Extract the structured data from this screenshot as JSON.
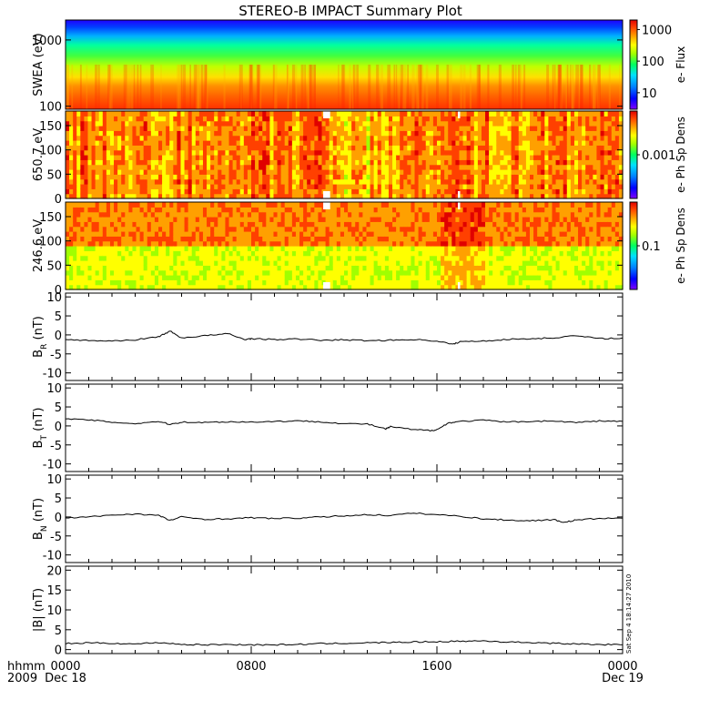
{
  "title": "STEREO-B IMPACT Summary Plot",
  "footer": {
    "time_label": "hhmm",
    "year_label": "2009",
    "ticks": [
      {
        "time": "0000",
        "date": "Dec 18",
        "hour": 0
      },
      {
        "time": "0800",
        "date": "",
        "hour": 8
      },
      {
        "time": "1600",
        "date": "",
        "hour": 16
      },
      {
        "time": "0000",
        "date": "Dec 19",
        "hour": 24
      }
    ],
    "stamp": "Sat Sep  4 18:14:27 2010"
  },
  "colors": {
    "spectrogram": [
      "#7f00ff",
      "#0000ff",
      "#0080ff",
      "#00e0ff",
      "#00ff60",
      "#a0ff00",
      "#ffff00",
      "#ffa000",
      "#ff4000",
      "#e00000"
    ],
    "line": "#000000"
  },
  "chart_data": [
    {
      "type": "heatmap",
      "ylabel": "SWEA (eV)",
      "yscale": "log",
      "ylim": [
        90,
        2000
      ],
      "yticks": [
        "100",
        "1000"
      ],
      "colorbar": {
        "label": "e- Flux",
        "scale": "log",
        "ticks": [
          "10",
          "100",
          "1000"
        ],
        "range": [
          3,
          2000
        ]
      },
      "x": {
        "unit": "hour",
        "range": [
          0,
          24
        ]
      },
      "description_levels": [
        {
          "energy_ev": 1800,
          "flux": 5
        },
        {
          "energy_ev": 1400,
          "flux": 15
        },
        {
          "energy_ev": 1000,
          "flux": 40
        },
        {
          "energy_ev": 700,
          "flux": 100
        },
        {
          "energy_ev": 450,
          "flux": 250
        },
        {
          "energy_ev": 300,
          "flux": 500
        },
        {
          "energy_ev": 200,
          "flux": 1000
        },
        {
          "energy_ev": 120,
          "flux": 1500
        }
      ]
    },
    {
      "type": "heatmap",
      "ylabel": "650.7 eV",
      "ylim": [
        0,
        180
      ],
      "yticks": [
        "0",
        "50",
        "100",
        "150"
      ],
      "colorbar": {
        "label": "e- Ph Sp Dens",
        "scale": "log",
        "ticks": [
          "0.001"
        ],
        "range": [
          0.0001,
          0.01
        ]
      },
      "x": {
        "unit": "hour",
        "range": [
          0,
          24
        ]
      },
      "gaps_hour": [
        [
          11.1,
          11.4
        ],
        [
          16.9,
          17.0
        ]
      ]
    },
    {
      "type": "heatmap",
      "ylabel": "246.6 eV",
      "ylim": [
        0,
        180
      ],
      "yticks": [
        "0",
        "50",
        "100",
        "150"
      ],
      "colorbar": {
        "label": "e- Ph Sp Dens",
        "scale": "log",
        "ticks": [
          "0.1"
        ],
        "range": [
          0.01,
          1
        ]
      },
      "x": {
        "unit": "hour",
        "range": [
          0,
          24
        ]
      },
      "gaps_hour": [
        [
          11.1,
          11.4
        ],
        [
          16.9,
          17.0
        ]
      ]
    },
    {
      "type": "line",
      "ylabel": "B",
      "ylabel_sub": "R",
      "ylabel_unit": " (nT)",
      "ylim": [
        -12,
        11
      ],
      "yticks": [
        "-10",
        "-5",
        "0",
        "5",
        "10"
      ],
      "x": [
        0,
        1,
        2,
        3,
        4,
        4.5,
        5,
        6,
        7,
        7.7,
        8,
        9,
        10,
        11,
        12,
        13,
        14,
        15,
        16,
        16.7,
        17,
        18,
        19,
        20,
        21,
        22,
        23,
        24
      ],
      "values": [
        -1.2,
        -1.5,
        -1.6,
        -1.3,
        -0.5,
        1.0,
        -0.8,
        -0.2,
        0.3,
        -1.2,
        -1.0,
        -1.2,
        -1.1,
        -1.4,
        -1.3,
        -1.5,
        -1.4,
        -1.2,
        -1.6,
        -2.5,
        -1.8,
        -1.6,
        -1.2,
        -1.0,
        -0.8,
        -0.2,
        -1.0,
        -0.8
      ]
    },
    {
      "type": "line",
      "ylabel": "B",
      "ylabel_sub": "T",
      "ylabel_unit": " (nT)",
      "ylim": [
        -12,
        11
      ],
      "yticks": [
        "-10",
        "-5",
        "0",
        "5",
        "10"
      ],
      "x": [
        0,
        1,
        2,
        3,
        4,
        4.5,
        5,
        6,
        7,
        8,
        9,
        10,
        11,
        12,
        13,
        13.8,
        14,
        15,
        15.7,
        16,
        16.5,
        17,
        18,
        19,
        20,
        21,
        22,
        23,
        24
      ],
      "values": [
        1.8,
        1.6,
        1.0,
        0.6,
        1.2,
        0.4,
        1.0,
        0.9,
        1.1,
        1.0,
        1.2,
        1.3,
        1.1,
        0.6,
        0.5,
        -0.8,
        -0.2,
        -1.0,
        -1.2,
        -1.0,
        0.8,
        1.2,
        1.5,
        1.0,
        1.2,
        1.3,
        0.9,
        1.3,
        1.2
      ]
    },
    {
      "type": "line",
      "ylabel": "B",
      "ylabel_sub": "N",
      "ylabel_unit": " (nT)",
      "ylim": [
        -12,
        11
      ],
      "yticks": [
        "-10",
        "-5",
        "0",
        "5",
        "10"
      ],
      "x": [
        0,
        1,
        2,
        3,
        4,
        4.5,
        5,
        6,
        7,
        8,
        9,
        10,
        11,
        12,
        13,
        14,
        15,
        16,
        17,
        18,
        19,
        20,
        21,
        21.5,
        22,
        23,
        24
      ],
      "values": [
        -0.3,
        0.0,
        0.5,
        0.8,
        0.4,
        -0.9,
        0.0,
        -0.6,
        -0.5,
        -0.2,
        -0.4,
        -0.3,
        0.0,
        0.3,
        0.6,
        0.4,
        1.0,
        0.6,
        0.2,
        -0.5,
        -0.8,
        -1.0,
        -0.7,
        -1.4,
        -0.8,
        -0.4,
        -0.3
      ]
    },
    {
      "type": "line",
      "ylabel": "|B| (nT)",
      "ylim": [
        -1,
        21
      ],
      "yticks": [
        "0",
        "5",
        "10",
        "15",
        "20"
      ],
      "x": [
        0,
        1,
        2,
        3,
        4,
        5,
        6,
        7,
        8,
        9,
        10,
        11,
        12,
        13,
        14,
        15,
        16,
        17,
        18,
        19,
        20,
        21,
        22,
        23,
        24
      ],
      "values": [
        1.5,
        1.7,
        1.6,
        1.4,
        1.8,
        1.3,
        1.2,
        1.3,
        1.2,
        1.2,
        1.3,
        1.5,
        1.6,
        1.7,
        1.8,
        1.9,
        2.0,
        2.1,
        2.2,
        1.9,
        1.8,
        1.6,
        1.4,
        1.3,
        1.2
      ]
    }
  ]
}
